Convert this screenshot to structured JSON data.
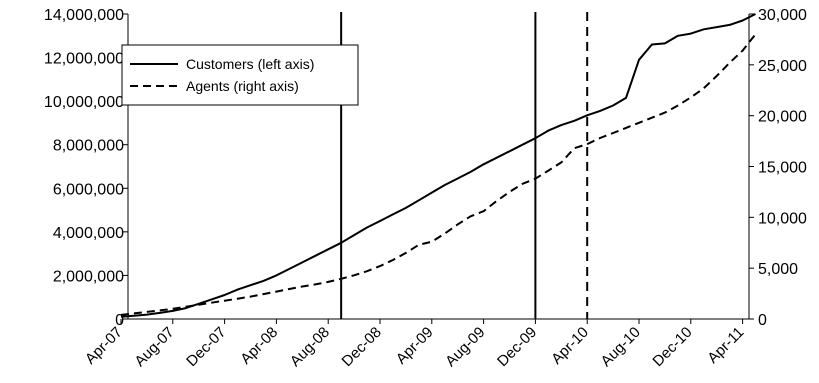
{
  "chart_data": {
    "type": "line",
    "x_ticks": [
      "Apr-07",
      "Aug-07",
      "Dec-07",
      "Apr-08",
      "Aug-08",
      "Dec-08",
      "Apr-09",
      "Aug-09",
      "Dec-09",
      "Apr-10",
      "Aug-10",
      "Dec-10",
      "Apr-11"
    ],
    "y_left": {
      "ylim": [
        0,
        14000000
      ],
      "ticks": [
        "0",
        "2,000,000",
        "4,000,000",
        "6,000,000",
        "8,000,000",
        "10,000,000",
        "12,000,000",
        "14,000,000"
      ]
    },
    "y_right": {
      "ylim": [
        0,
        30000
      ],
      "ticks": [
        "0",
        "5,000",
        "10,000",
        "15,000",
        "20,000",
        "25,000",
        "30,000"
      ]
    },
    "legend_position": "top-left",
    "series": [
      {
        "name": "Customers (left axis)",
        "axis": "left",
        "style": "solid",
        "points": [
          [
            "Apr-07",
            100000
          ],
          [
            "May-07",
            150000
          ],
          [
            "Jun-07",
            200000
          ],
          [
            "Jul-07",
            280000
          ],
          [
            "Aug-07",
            370000
          ],
          [
            "Sep-07",
            500000
          ],
          [
            "Oct-07",
            700000
          ],
          [
            "Nov-07",
            900000
          ],
          [
            "Dec-07",
            1100000
          ],
          [
            "Jan-08",
            1350000
          ],
          [
            "Feb-08",
            1550000
          ],
          [
            "Mar-08",
            1750000
          ],
          [
            "Apr-08",
            2000000
          ],
          [
            "May-08",
            2300000
          ],
          [
            "Jun-08",
            2600000
          ],
          [
            "Jul-08",
            2900000
          ],
          [
            "Aug-08",
            3200000
          ],
          [
            "Sep-08",
            3500000
          ],
          [
            "Oct-08",
            3850000
          ],
          [
            "Nov-08",
            4200000
          ],
          [
            "Dec-08",
            4500000
          ],
          [
            "Jan-09",
            4800000
          ],
          [
            "Feb-09",
            5100000
          ],
          [
            "Mar-09",
            5450000
          ],
          [
            "Apr-09",
            5800000
          ],
          [
            "May-09",
            6150000
          ],
          [
            "Jun-09",
            6450000
          ],
          [
            "Jul-09",
            6750000
          ],
          [
            "Aug-09",
            7100000
          ],
          [
            "Sep-09",
            7400000
          ],
          [
            "Oct-09",
            7700000
          ],
          [
            "Nov-09",
            8000000
          ],
          [
            "Dec-09",
            8300000
          ],
          [
            "Jan-10",
            8650000
          ],
          [
            "Feb-10",
            8900000
          ],
          [
            "Mar-10",
            9100000
          ],
          [
            "Apr-10",
            9350000
          ],
          [
            "May-10",
            9550000
          ],
          [
            "Jun-10",
            9800000
          ],
          [
            "Jul-10",
            10150000
          ],
          [
            "Aug-10",
            11900000
          ],
          [
            "Sep-10",
            12600000
          ],
          [
            "Oct-10",
            12650000
          ],
          [
            "Nov-10",
            13000000
          ],
          [
            "Dec-10",
            13100000
          ],
          [
            "Jan-11",
            13300000
          ],
          [
            "Feb-11",
            13400000
          ],
          [
            "Mar-11",
            13500000
          ],
          [
            "Apr-11",
            13700000
          ],
          [
            "May-11",
            14000000
          ]
        ]
      },
      {
        "name": "Agents (right axis)",
        "axis": "right",
        "style": "dashed",
        "points": [
          [
            "Apr-07",
            400
          ],
          [
            "May-07",
            550
          ],
          [
            "Jun-07",
            700
          ],
          [
            "Jul-07",
            850
          ],
          [
            "Aug-07",
            1000
          ],
          [
            "Sep-07",
            1200
          ],
          [
            "Oct-07",
            1400
          ],
          [
            "Nov-07",
            1600
          ],
          [
            "Dec-07",
            1800
          ],
          [
            "Jan-08",
            2000
          ],
          [
            "Feb-08",
            2200
          ],
          [
            "Mar-08",
            2450
          ],
          [
            "Apr-08",
            2700
          ],
          [
            "May-08",
            2950
          ],
          [
            "Jun-08",
            3200
          ],
          [
            "Jul-08",
            3400
          ],
          [
            "Aug-08",
            3650
          ],
          [
            "Sep-08",
            3950
          ],
          [
            "Oct-08",
            4300
          ],
          [
            "Nov-08",
            4700
          ],
          [
            "Dec-08",
            5200
          ],
          [
            "Jan-09",
            5800
          ],
          [
            "Feb-09",
            6500
          ],
          [
            "Mar-09",
            7300
          ],
          [
            "Apr-09",
            7600
          ],
          [
            "May-09",
            8400
          ],
          [
            "Jun-09",
            9300
          ],
          [
            "Jul-09",
            10100
          ],
          [
            "Aug-09",
            10600
          ],
          [
            "Sep-09",
            11600
          ],
          [
            "Oct-09",
            12500
          ],
          [
            "Nov-09",
            13300
          ],
          [
            "Dec-09",
            13800
          ],
          [
            "Jan-10",
            14600
          ],
          [
            "Feb-10",
            15400
          ],
          [
            "Mar-10",
            16800
          ],
          [
            "Apr-10",
            17200
          ],
          [
            "May-10",
            17800
          ],
          [
            "Jun-10",
            18300
          ],
          [
            "Jul-10",
            18800
          ],
          [
            "Aug-10",
            19300
          ],
          [
            "Sep-10",
            19800
          ],
          [
            "Oct-10",
            20300
          ],
          [
            "Nov-10",
            21000
          ],
          [
            "Dec-10",
            21800
          ],
          [
            "Jan-11",
            22700
          ],
          [
            "Feb-11",
            23900
          ],
          [
            "Mar-11",
            25200
          ],
          [
            "Apr-11",
            26400
          ],
          [
            "May-11",
            28000
          ]
        ]
      }
    ],
    "vertical_lines": [
      {
        "x": "Sep-08",
        "style": "solid"
      },
      {
        "x": "Dec-09",
        "style": "solid"
      },
      {
        "x": "Apr-10",
        "style": "dashed"
      }
    ],
    "line_color": "#000000"
  }
}
